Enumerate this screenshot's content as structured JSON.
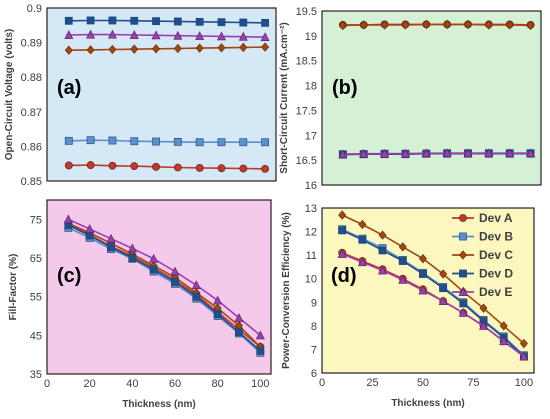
{
  "chart_data": [
    {
      "type": "line",
      "panel_label": "(a)",
      "ylabel": "Open-Circuit Voltage (volts)",
      "xlabel": "",
      "background": "#d4e8f6",
      "ylim": [
        0.85,
        0.9
      ],
      "yticks": [
        "0.85",
        "0.86",
        "0.87",
        "0.88",
        "0.89",
        "0.9"
      ],
      "x": [
        10,
        20,
        30,
        40,
        50,
        60,
        70,
        80,
        90,
        100
      ],
      "series": [
        {
          "name": "Dev A",
          "values": [
            0.8545,
            0.8546,
            0.8544,
            0.8543,
            0.8541,
            0.8539,
            0.8538,
            0.8537,
            0.8536,
            0.8535
          ]
        },
        {
          "name": "Dev B",
          "values": [
            0.8616,
            0.8618,
            0.8617,
            0.8615,
            0.8614,
            0.8613,
            0.8612,
            0.8612,
            0.8612,
            0.8612
          ]
        },
        {
          "name": "Dev C",
          "values": [
            0.8878,
            0.8879,
            0.888,
            0.8881,
            0.8882,
            0.8883,
            0.8884,
            0.8885,
            0.8886,
            0.8887
          ]
        },
        {
          "name": "Dev D",
          "values": [
            0.8963,
            0.8964,
            0.8964,
            0.8963,
            0.8962,
            0.8961,
            0.896,
            0.8959,
            0.8958,
            0.8957
          ]
        },
        {
          "name": "Dev E",
          "values": [
            0.8922,
            0.8923,
            0.8923,
            0.8922,
            0.8921,
            0.892,
            0.8919,
            0.8918,
            0.8917,
            0.8916
          ]
        }
      ]
    },
    {
      "type": "line",
      "panel_label": "(b)",
      "ylabel": "Short-Circuit Current (mA.cm⁻²)",
      "xlabel": "",
      "background": "#d6f0d6",
      "ylim": [
        16,
        19.5
      ],
      "yticks": [
        "16",
        "16.5",
        "17",
        "17.5",
        "18",
        "18.5",
        "19",
        "19.5"
      ],
      "x": [
        10,
        20,
        30,
        40,
        50,
        60,
        70,
        80,
        90,
        100
      ],
      "series": [
        {
          "name": "Dev A",
          "values": [
            19.22,
            19.22,
            19.23,
            19.23,
            19.23,
            19.23,
            19.23,
            19.23,
            19.23,
            19.22
          ]
        },
        {
          "name": "Dev B",
          "values": [
            16.62,
            16.62,
            16.63,
            16.63,
            16.63,
            16.64,
            16.64,
            16.64,
            16.64,
            16.64
          ]
        },
        {
          "name": "Dev C",
          "values": [
            19.21,
            19.22,
            19.22,
            19.22,
            19.23,
            19.23,
            19.23,
            19.22,
            19.22,
            19.21
          ]
        },
        {
          "name": "Dev D",
          "values": [
            16.61,
            16.62,
            16.62,
            16.62,
            16.63,
            16.63,
            16.63,
            16.63,
            16.63,
            16.63
          ]
        },
        {
          "name": "Dev E",
          "values": [
            16.62,
            16.63,
            16.63,
            16.63,
            16.64,
            16.64,
            16.64,
            16.64,
            16.64,
            16.64
          ]
        }
      ]
    },
    {
      "type": "line",
      "panel_label": "(c)",
      "ylabel": "Fill-Factor (%)",
      "xlabel": "Thickness (nm)",
      "background": "#f5c9ea",
      "xlim": [
        0,
        105
      ],
      "xticks": [
        "0",
        "20",
        "40",
        "60",
        "80",
        "100"
      ],
      "ylim": [
        35,
        80
      ],
      "yticks": [
        "35",
        "45",
        "55",
        "65",
        "75"
      ],
      "x": [
        10,
        20,
        30,
        40,
        50,
        60,
        70,
        80,
        90,
        100
      ],
      "series": [
        {
          "name": "Dev A",
          "values": [
            73.8,
            71.0,
            68.0,
            65.5,
            62.5,
            59.3,
            55.5,
            51.0,
            46.5,
            42.0
          ]
        },
        {
          "name": "Dev B",
          "values": [
            72.8,
            70.2,
            67.3,
            64.8,
            61.5,
            58.3,
            54.5,
            50.0,
            45.5,
            40.5
          ]
        },
        {
          "name": "Dev C",
          "values": [
            74.0,
            71.5,
            68.8,
            66.0,
            63.0,
            60.0,
            56.0,
            52.0,
            47.5,
            42.0
          ]
        },
        {
          "name": "Dev D",
          "values": [
            73.5,
            70.8,
            67.8,
            65.0,
            62.0,
            58.8,
            55.0,
            50.5,
            45.8,
            41.0
          ]
        },
        {
          "name": "Dev E",
          "values": [
            75.0,
            72.5,
            70.0,
            67.5,
            64.8,
            61.5,
            58.0,
            54.0,
            49.5,
            45.0
          ]
        }
      ]
    },
    {
      "type": "line",
      "panel_label": "(d)",
      "ylabel": "Power-Conversion Efficiency (%)",
      "xlabel": "Thickness (nm)",
      "background": "#fbf7bf",
      "xlim": [
        0,
        105
      ],
      "xticks": [
        "0",
        "25",
        "50",
        "75",
        "100"
      ],
      "ylim": [
        6,
        13
      ],
      "yticks": [
        "6",
        "7",
        "8",
        "9",
        "10",
        "11",
        "12",
        "13"
      ],
      "legend_position": "top-right",
      "x": [
        10,
        20,
        30,
        40,
        50,
        60,
        70,
        80,
        90,
        100
      ],
      "series": [
        {
          "name": "Dev A",
          "values": [
            11.1,
            10.75,
            10.4,
            10.0,
            9.55,
            9.05,
            8.55,
            8.0,
            7.35,
            6.7
          ]
        },
        {
          "name": "Dev B",
          "values": [
            12.1,
            11.7,
            11.3,
            10.8,
            10.25,
            9.65,
            9.0,
            8.25,
            7.55,
            6.75
          ]
        },
        {
          "name": "Dev C",
          "values": [
            12.7,
            12.3,
            11.85,
            11.35,
            10.85,
            10.2,
            9.45,
            8.75,
            8.0,
            7.25
          ]
        },
        {
          "name": "Dev D",
          "values": [
            12.05,
            11.65,
            11.2,
            10.75,
            10.2,
            9.6,
            8.95,
            8.2,
            7.5,
            6.7
          ]
        },
        {
          "name": "Dev E",
          "values": [
            11.05,
            10.7,
            10.35,
            9.95,
            9.5,
            9.05,
            8.55,
            8.0,
            7.35,
            6.7
          ]
        }
      ]
    }
  ],
  "legend": {
    "entries": [
      "Dev A",
      "Dev B",
      "Dev C",
      "Dev D",
      "Dev E"
    ]
  },
  "series_styles": {
    "Dev A": {
      "color": "#c0392b",
      "marker": "circle"
    },
    "Dev B": {
      "color": "#5b8fd0",
      "marker": "square"
    },
    "Dev C": {
      "color": "#a3470f",
      "marker": "diamond"
    },
    "Dev D": {
      "color": "#1f4e8c",
      "marker": "square"
    },
    "Dev E": {
      "color": "#9b3fb0",
      "marker": "triangle"
    }
  }
}
